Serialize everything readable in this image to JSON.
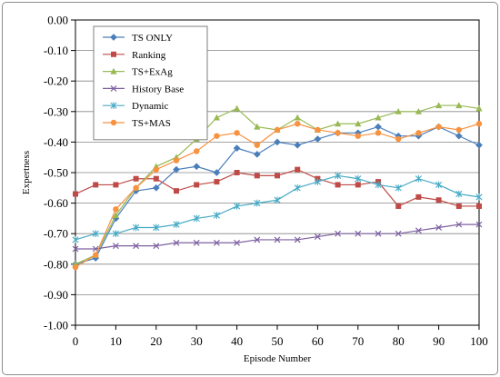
{
  "chart_data": {
    "type": "line",
    "title": "",
    "xlabel": "Episode Number",
    "ylabel": "Expertness",
    "xlim": [
      0,
      100
    ],
    "ylim": [
      -1.0,
      0.0
    ],
    "x_ticks": [
      "0",
      "10",
      "20",
      "30",
      "40",
      "50",
      "60",
      "70",
      "80",
      "90",
      "100"
    ],
    "y_ticks": [
      "0.00",
      "-0.10",
      "-0.20",
      "-0.30",
      "-0.40",
      "-0.50",
      "-0.60",
      "-0.70",
      "-0.80",
      "-0.90",
      "-1.00"
    ],
    "grid": true,
    "legend_position": "top-left",
    "x": [
      0,
      5,
      10,
      15,
      20,
      25,
      30,
      35,
      40,
      45,
      50,
      55,
      60,
      65,
      70,
      75,
      80,
      85,
      90,
      95,
      100
    ],
    "series": [
      {
        "name": "TS ONLY",
        "color": "#4a7ebb",
        "marker": "diamond",
        "values": [
          -0.8,
          -0.78,
          -0.65,
          -0.56,
          -0.55,
          -0.49,
          -0.48,
          -0.5,
          -0.42,
          -0.44,
          -0.4,
          -0.41,
          -0.39,
          -0.37,
          -0.37,
          -0.35,
          -0.38,
          -0.38,
          -0.35,
          -0.38,
          -0.41
        ]
      },
      {
        "name": "Ranking",
        "color": "#be4b48",
        "marker": "square",
        "values": [
          -0.57,
          -0.54,
          -0.54,
          -0.52,
          -0.52,
          -0.56,
          -0.54,
          -0.53,
          -0.5,
          -0.51,
          -0.51,
          -0.49,
          -0.52,
          -0.54,
          -0.54,
          -0.53,
          -0.61,
          -0.58,
          -0.59,
          -0.61,
          -0.61
        ]
      },
      {
        "name": "TS+ExAg",
        "color": "#98b954",
        "marker": "triangle",
        "values": [
          -0.8,
          -0.77,
          -0.64,
          -0.55,
          -0.48,
          -0.45,
          -0.39,
          -0.32,
          -0.29,
          -0.35,
          -0.36,
          -0.32,
          -0.36,
          -0.34,
          -0.34,
          -0.32,
          -0.3,
          -0.3,
          -0.28,
          -0.28,
          -0.29
        ]
      },
      {
        "name": "History Base",
        "color": "#7d60a0",
        "marker": "x",
        "values": [
          -0.75,
          -0.75,
          -0.74,
          -0.74,
          -0.74,
          -0.73,
          -0.73,
          -0.73,
          -0.73,
          -0.72,
          -0.72,
          -0.72,
          -0.71,
          -0.7,
          -0.7,
          -0.7,
          -0.7,
          -0.69,
          -0.68,
          -0.67,
          -0.67
        ]
      },
      {
        "name": "Dynamic",
        "color": "#46aac5",
        "marker": "star",
        "values": [
          -0.72,
          -0.7,
          -0.7,
          -0.68,
          -0.68,
          -0.67,
          -0.65,
          -0.64,
          -0.61,
          -0.6,
          -0.59,
          -0.55,
          -0.53,
          -0.51,
          -0.52,
          -0.54,
          -0.55,
          -0.52,
          -0.54,
          -0.57,
          -0.58
        ]
      },
      {
        "name": "TS+MAS",
        "color": "#f69240",
        "marker": "circle",
        "values": [
          -0.81,
          -0.77,
          -0.62,
          -0.55,
          -0.49,
          -0.46,
          -0.43,
          -0.38,
          -0.37,
          -0.41,
          -0.36,
          -0.34,
          -0.36,
          -0.37,
          -0.38,
          -0.37,
          -0.39,
          -0.37,
          -0.35,
          -0.36,
          -0.34
        ]
      }
    ]
  }
}
